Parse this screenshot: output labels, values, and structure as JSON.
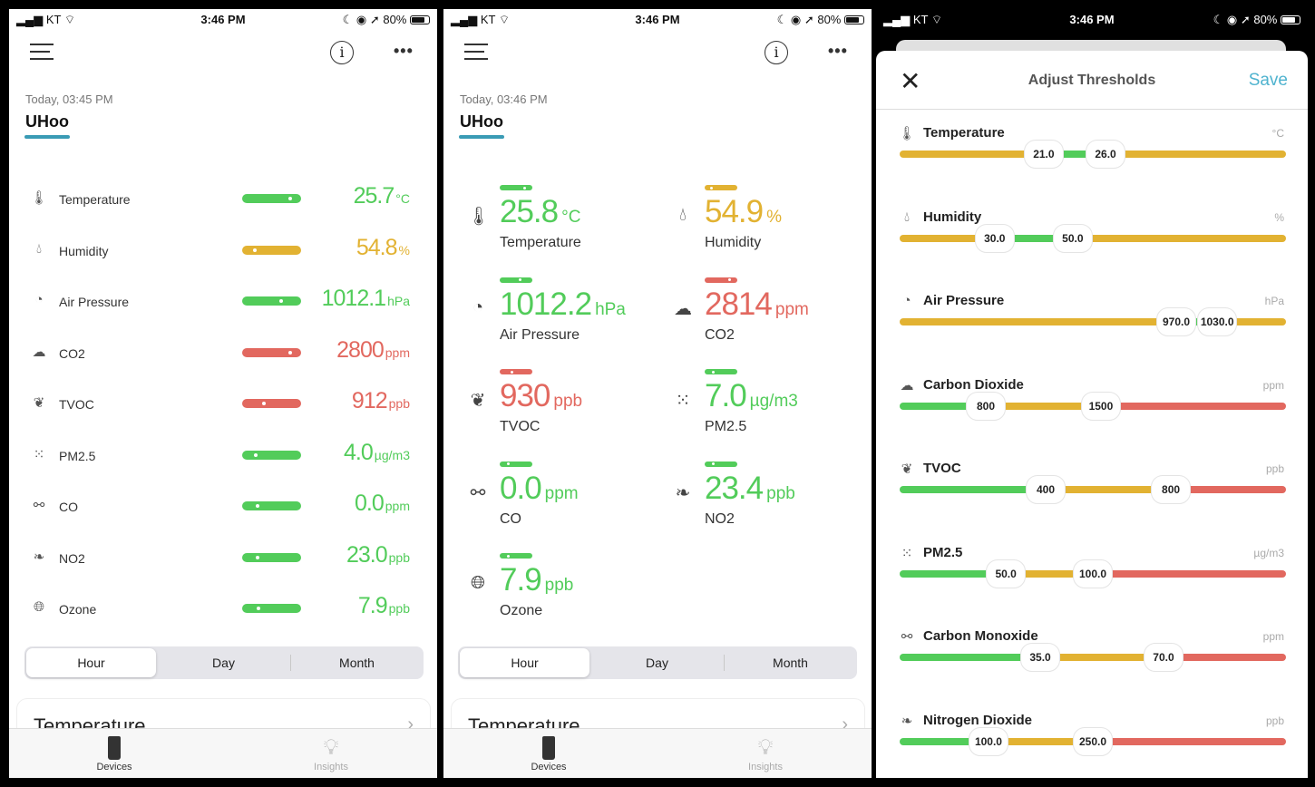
{
  "colors": {
    "green": "#52cc5a",
    "yellow": "#e2b232",
    "red": "#e2685f",
    "accent": "#3a9bb5",
    "save": "#4fb3cf"
  },
  "status": {
    "carrier": "KT",
    "time": "3:46 PM",
    "battery": "80%"
  },
  "panel1": {
    "timestamp": "Today, 03:45 PM",
    "device": "UHoo",
    "metrics": [
      {
        "icon": "thermometer-icon",
        "glyph": "🌡",
        "label": "Temperature",
        "value": "25.7",
        "unit": "°C",
        "status": "green",
        "level": 0.88
      },
      {
        "icon": "droplet-icon",
        "glyph": "💧",
        "label": "Humidity",
        "value": "54.8",
        "unit": "%",
        "status": "yellow",
        "level": 0.2
      },
      {
        "icon": "gauge-icon",
        "glyph": "◔",
        "label": "Air Pressure",
        "value": "1012.1",
        "unit": "hPa",
        "status": "green",
        "level": 0.7
      },
      {
        "icon": "cloud-icon",
        "glyph": "☁",
        "label": "CO2",
        "value": "2800",
        "unit": "ppm",
        "status": "red",
        "level": 0.88
      },
      {
        "icon": "leaf-icon",
        "glyph": "❦",
        "label": "TVOC",
        "value": "912",
        "unit": "ppb",
        "status": "red",
        "level": 0.38
      },
      {
        "icon": "particles-icon",
        "glyph": "⁙",
        "label": "PM2.5",
        "value": "4.0",
        "unit": "µg/m3",
        "status": "green",
        "level": 0.22
      },
      {
        "icon": "molecule-icon",
        "glyph": "⚯",
        "label": "CO",
        "value": "0.0",
        "unit": "ppm",
        "status": "green",
        "level": 0.25
      },
      {
        "icon": "sprout-icon",
        "glyph": "❧",
        "label": "NO2",
        "value": "23.0",
        "unit": "ppb",
        "status": "green",
        "level": 0.25
      },
      {
        "icon": "globe-icon",
        "glyph": "🌐",
        "label": "Ozone",
        "value": "7.9",
        "unit": "ppb",
        "status": "green",
        "level": 0.28
      }
    ]
  },
  "panel2": {
    "timestamp": "Today, 03:46 PM",
    "device": "UHoo",
    "metrics": [
      {
        "icon": "thermometer-icon",
        "glyph": "🌡",
        "label": "Temperature",
        "value": "25.8",
        "unit": "°C",
        "status": "green",
        "level": 0.85
      },
      {
        "icon": "droplet-icon",
        "glyph": "💧",
        "label": "Humidity",
        "value": "54.9",
        "unit": "%",
        "status": "yellow",
        "level": 0.2
      },
      {
        "icon": "gauge-icon",
        "glyph": "◔",
        "label": "Air Pressure",
        "value": "1012.2",
        "unit": "hPa",
        "status": "green",
        "level": 0.7
      },
      {
        "icon": "cloud-icon",
        "glyph": "☁",
        "label": "CO2",
        "value": "2814",
        "unit": "ppm",
        "status": "red",
        "level": 0.88
      },
      {
        "icon": "leaf-icon",
        "glyph": "❦",
        "label": "TVOC",
        "value": "930",
        "unit": "ppb",
        "status": "red",
        "level": 0.4
      },
      {
        "icon": "particles-icon",
        "glyph": "⁙",
        "label": "PM2.5",
        "value": "7.0",
        "unit": "µg/m3",
        "status": "green",
        "level": 0.25
      },
      {
        "icon": "molecule-icon",
        "glyph": "⚯",
        "label": "CO",
        "value": "0.0",
        "unit": "ppm",
        "status": "green",
        "level": 0.25
      },
      {
        "icon": "sprout-icon",
        "glyph": "❧",
        "label": "NO2",
        "value": "23.4",
        "unit": "ppb",
        "status": "green",
        "level": 0.25
      },
      {
        "icon": "globe-icon",
        "glyph": "🌐",
        "label": "Ozone",
        "value": "7.9",
        "unit": "ppb",
        "status": "green",
        "level": 0.28
      }
    ]
  },
  "range_tabs": [
    "Hour",
    "Day",
    "Month"
  ],
  "selected_range": "Hour",
  "card_title": "Temperature",
  "tabbar": {
    "devices": "Devices",
    "insights": "Insights"
  },
  "thresholds": {
    "title": "Adjust Thresholds",
    "save": "Save",
    "items": [
      {
        "icon": "thermometer-icon",
        "glyph": "🌡",
        "label": "Temperature",
        "unit": "°C",
        "low": "21.0",
        "high": "26.0",
        "colors": [
          "yellow",
          "green",
          "yellow"
        ]
      },
      {
        "icon": "droplet-icon",
        "glyph": "💧",
        "label": "Humidity",
        "unit": "%",
        "low": "30.0",
        "high": "50.0",
        "colors": [
          "yellow",
          "green",
          "yellow"
        ]
      },
      {
        "icon": "gauge-icon",
        "glyph": "◔",
        "label": "Air Pressure",
        "unit": "hPa",
        "low": "970.0",
        "high": "1030.0",
        "colors": [
          "yellow",
          "green",
          "yellow"
        ]
      },
      {
        "icon": "cloud-icon",
        "glyph": "☁",
        "label": "Carbon Dioxide",
        "unit": "ppm",
        "low": "800",
        "high": "1500",
        "colors": [
          "green",
          "yellow",
          "red"
        ]
      },
      {
        "icon": "leaf-icon",
        "glyph": "❦",
        "label": "TVOC",
        "unit": "ppb",
        "low": "400",
        "high": "800",
        "colors": [
          "green",
          "yellow",
          "red"
        ]
      },
      {
        "icon": "particles-icon",
        "glyph": "⁙",
        "label": "PM2.5",
        "unit": "µg/m3",
        "low": "50.0",
        "high": "100.0",
        "colors": [
          "green",
          "yellow",
          "red"
        ]
      },
      {
        "icon": "molecule-icon",
        "glyph": "⚯",
        "label": "Carbon Monoxide",
        "unit": "ppm",
        "low": "35.0",
        "high": "70.0",
        "colors": [
          "green",
          "yellow",
          "red"
        ]
      },
      {
        "icon": "sprout-icon",
        "glyph": "❧",
        "label": "Nitrogen Dioxide",
        "unit": "ppb",
        "low": "100.0",
        "high": "250.0",
        "colors": [
          "green",
          "yellow",
          "red"
        ]
      }
    ]
  }
}
